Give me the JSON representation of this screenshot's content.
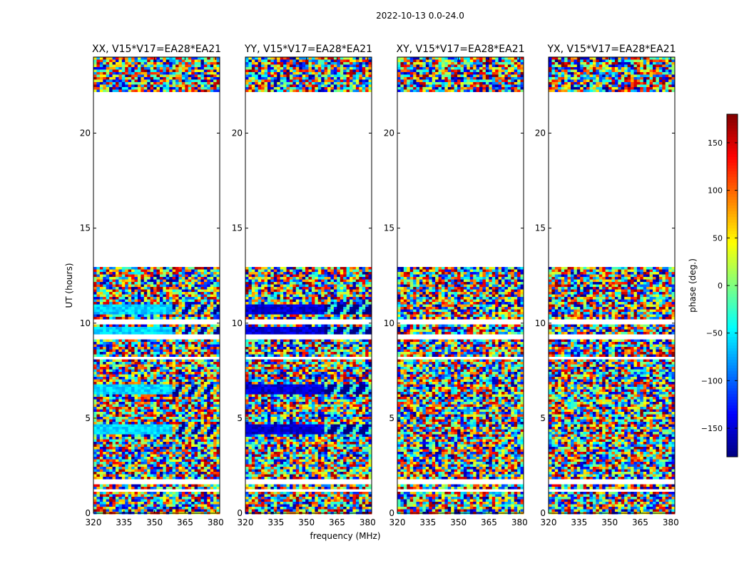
{
  "chart_data": {
    "type": "heatmap",
    "title": "2022-10-13 0.0-24.0",
    "xlabel": "frequency (MHz)",
    "ylabel": "UT (hours)",
    "xlim": [
      320,
      382
    ],
    "ylim": [
      0,
      24
    ],
    "x_ticks": [
      320,
      335,
      350,
      365,
      380
    ],
    "y_ticks": [
      0,
      5,
      10,
      15,
      20
    ],
    "panels": [
      {
        "title": "XX, V15*V17=EA28*EA21",
        "pol": "XX",
        "calibrator_phase": -60
      },
      {
        "title": "YY, V15*V17=EA28*EA21",
        "pol": "YY",
        "calibrator_phase": -150
      },
      {
        "title": "XY, V15*V17=EA28*EA21",
        "pol": "XY",
        "calibrator_phase": null
      },
      {
        "title": "YX, V15*V17=EA28*EA21",
        "pol": "YX",
        "calibrator_phase": null
      }
    ],
    "flagged_ut_ranges": [
      [
        13.0,
        22.2
      ],
      [
        8.05,
        8.25
      ],
      [
        9.2,
        9.35
      ],
      [
        10.0,
        10.15
      ],
      [
        1.1,
        1.3
      ],
      [
        1.5,
        1.75
      ]
    ],
    "calibrator_ut_ranges": [
      [
        10.5,
        11.0
      ],
      [
        9.35,
        9.8
      ],
      [
        6.3,
        6.8
      ],
      [
        4.2,
        4.7
      ]
    ],
    "colorbar": {
      "label": "phase (deg.)",
      "range": [
        -180,
        180
      ],
      "ticks": [
        150,
        100,
        50,
        0,
        -50,
        -100,
        -150
      ],
      "tick_labels": [
        "150",
        "100",
        "50",
        "0",
        "−50",
        "−100",
        "−150"
      ]
    }
  }
}
